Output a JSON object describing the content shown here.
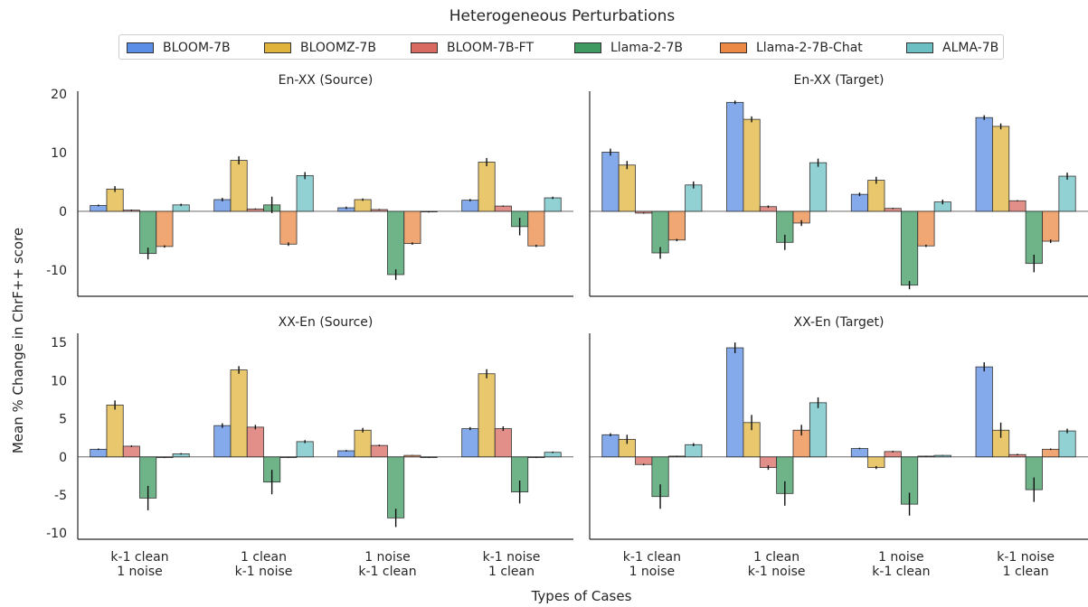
{
  "figure_title": "Heterogeneous Perturbations",
  "x_axis_label": "Types of Cases",
  "y_axis_label": "Mean % Change in ChrF++ score",
  "legend": [
    {
      "name": "BLOOM-7B",
      "color": "#5b8ee6"
    },
    {
      "name": "BLOOMZ-7B",
      "color": "#e0b43c"
    },
    {
      "name": "BLOOM-7B-FT",
      "color": "#d96a62"
    },
    {
      "name": "Llama-2-7B",
      "color": "#3f9a62"
    },
    {
      "name": "Llama-2-7B-Chat",
      "color": "#ec8a45"
    },
    {
      "name": "ALMA-7B",
      "color": "#6cc0c4"
    }
  ],
  "chart_data": [
    {
      "type": "bar",
      "title": "En-XX (Source)",
      "categories": [
        [
          "k-1 clean",
          "1 noise"
        ],
        [
          "1 clean",
          "k-1 noise"
        ],
        [
          "1 noise",
          "k-1 clean"
        ],
        [
          "k-1 noise",
          "1 clean"
        ]
      ],
      "ylim": [
        -14.5,
        20.5
      ],
      "yticks": [
        -10,
        0,
        10,
        20
      ],
      "series": [
        {
          "name": "BLOOM-7B",
          "values": [
            1.0,
            2.0,
            0.6,
            1.9
          ],
          "errors": [
            0.15,
            0.3,
            0.2,
            0.2
          ]
        },
        {
          "name": "BLOOMZ-7B",
          "values": [
            3.8,
            8.7,
            2.0,
            8.4
          ],
          "errors": [
            0.5,
            0.7,
            0.2,
            0.7
          ]
        },
        {
          "name": "BLOOM-7B-FT",
          "values": [
            0.2,
            0.4,
            0.3,
            0.9
          ],
          "errors": [
            0.1,
            0.1,
            0.1,
            0.1
          ]
        },
        {
          "name": "Llama-2-7B",
          "values": [
            -7.2,
            1.1,
            -10.8,
            -2.6
          ],
          "errors": [
            1.0,
            1.4,
            0.9,
            1.5
          ]
        },
        {
          "name": "Llama-2-7B-Chat",
          "values": [
            -6.0,
            -5.6,
            -5.5,
            -5.9
          ],
          "errors": [
            0.2,
            0.3,
            0.2,
            0.2
          ]
        },
        {
          "name": "ALMA-7B",
          "values": [
            1.1,
            6.1,
            -0.1,
            2.3
          ],
          "errors": [
            0.2,
            0.6,
            0.1,
            0.2
          ]
        }
      ]
    },
    {
      "type": "bar",
      "title": "En-XX (Target)",
      "categories": [
        [
          "k-1 clean",
          "1 noise"
        ],
        [
          "1 clean",
          "k-1 noise"
        ],
        [
          "1 noise",
          "k-1 clean"
        ],
        [
          "k-1 noise",
          "1 clean"
        ]
      ],
      "ylim": [
        -14.5,
        20.5
      ],
      "yticks": [
        -10,
        0,
        10,
        20
      ],
      "series": [
        {
          "name": "BLOOM-7B",
          "values": [
            10.1,
            18.6,
            2.9,
            16.0
          ],
          "errors": [
            0.6,
            0.3,
            0.3,
            0.4
          ]
        },
        {
          "name": "BLOOMZ-7B",
          "values": [
            7.9,
            15.7,
            5.3,
            14.5
          ],
          "errors": [
            0.7,
            0.5,
            0.6,
            0.5
          ]
        },
        {
          "name": "BLOOM-7B-FT",
          "values": [
            -0.3,
            0.8,
            0.5,
            1.8
          ],
          "errors": [
            0.1,
            0.2,
            0.1,
            0.1
          ]
        },
        {
          "name": "Llama-2-7B",
          "values": [
            -7.1,
            -5.3,
            -12.6,
            -8.9
          ],
          "errors": [
            1.0,
            1.3,
            0.7,
            1.5
          ]
        },
        {
          "name": "Llama-2-7B-Chat",
          "values": [
            -4.9,
            -2.0,
            -5.9,
            -5.1
          ],
          "errors": [
            0.2,
            0.5,
            0.2,
            0.3
          ]
        },
        {
          "name": "ALMA-7B",
          "values": [
            4.5,
            8.3,
            1.6,
            6.0
          ],
          "errors": [
            0.6,
            0.7,
            0.4,
            0.6
          ]
        }
      ]
    },
    {
      "type": "bar",
      "title": "XX-En (Source)",
      "categories": [
        [
          "k-1 clean",
          "1 noise"
        ],
        [
          "1 clean",
          "k-1 noise"
        ],
        [
          "1 noise",
          "k-1 clean"
        ],
        [
          "k-1 noise",
          "1 clean"
        ]
      ],
      "ylim": [
        -10.8,
        16.2
      ],
      "yticks": [
        -10,
        -5,
        0,
        5,
        10,
        15
      ],
      "series": [
        {
          "name": "BLOOM-7B",
          "values": [
            1.0,
            4.1,
            0.8,
            3.7
          ],
          "errors": [
            0.1,
            0.3,
            0.1,
            0.2
          ]
        },
        {
          "name": "BLOOMZ-7B",
          "values": [
            6.8,
            11.4,
            3.5,
            10.9
          ],
          "errors": [
            0.6,
            0.5,
            0.3,
            0.6
          ]
        },
        {
          "name": "BLOOM-7B-FT",
          "values": [
            1.4,
            3.9,
            1.5,
            3.7
          ],
          "errors": [
            0.1,
            0.3,
            0.1,
            0.3
          ]
        },
        {
          "name": "Llama-2-7B",
          "values": [
            -5.4,
            -3.3,
            -8.0,
            -4.6
          ],
          "errors": [
            1.6,
            1.6,
            1.2,
            1.5
          ]
        },
        {
          "name": "Llama-2-7B-Chat",
          "values": [
            -0.1,
            -0.1,
            0.2,
            -0.1
          ],
          "errors": [
            0.05,
            0.05,
            0.05,
            0.05
          ]
        },
        {
          "name": "ALMA-7B",
          "values": [
            0.4,
            2.0,
            -0.1,
            0.6
          ],
          "errors": [
            0.1,
            0.2,
            0.05,
            0.1
          ]
        }
      ]
    },
    {
      "type": "bar",
      "title": "XX-En (Target)",
      "categories": [
        [
          "k-1 clean",
          "1 noise"
        ],
        [
          "1 clean",
          "k-1 noise"
        ],
        [
          "1 noise",
          "k-1 clean"
        ],
        [
          "k-1 noise",
          "1 clean"
        ]
      ],
      "ylim": [
        -10.8,
        16.2
      ],
      "yticks": [
        -10,
        -5,
        0,
        5,
        10,
        15
      ],
      "series": [
        {
          "name": "BLOOM-7B",
          "values": [
            2.9,
            14.3,
            1.1,
            11.8
          ],
          "errors": [
            0.2,
            0.7,
            0.1,
            0.6
          ]
        },
        {
          "name": "BLOOMZ-7B",
          "values": [
            2.3,
            4.5,
            -1.4,
            3.5
          ],
          "errors": [
            0.6,
            1.0,
            0.2,
            1.0
          ]
        },
        {
          "name": "BLOOM-7B-FT",
          "values": [
            -1.0,
            -1.4,
            0.7,
            0.3
          ],
          "errors": [
            0.1,
            0.3,
            0.1,
            0.1
          ]
        },
        {
          "name": "Llama-2-7B",
          "values": [
            -5.2,
            -4.8,
            -6.2,
            -4.3
          ],
          "errors": [
            1.6,
            1.6,
            1.5,
            1.6
          ]
        },
        {
          "name": "Llama-2-7B-Chat",
          "values": [
            0.1,
            3.5,
            0.1,
            1.0
          ],
          "errors": [
            0.05,
            0.7,
            0.05,
            0.1
          ]
        },
        {
          "name": "ALMA-7B",
          "values": [
            1.6,
            7.1,
            0.2,
            3.4
          ],
          "errors": [
            0.2,
            0.7,
            0.05,
            0.3
          ]
        }
      ]
    }
  ]
}
